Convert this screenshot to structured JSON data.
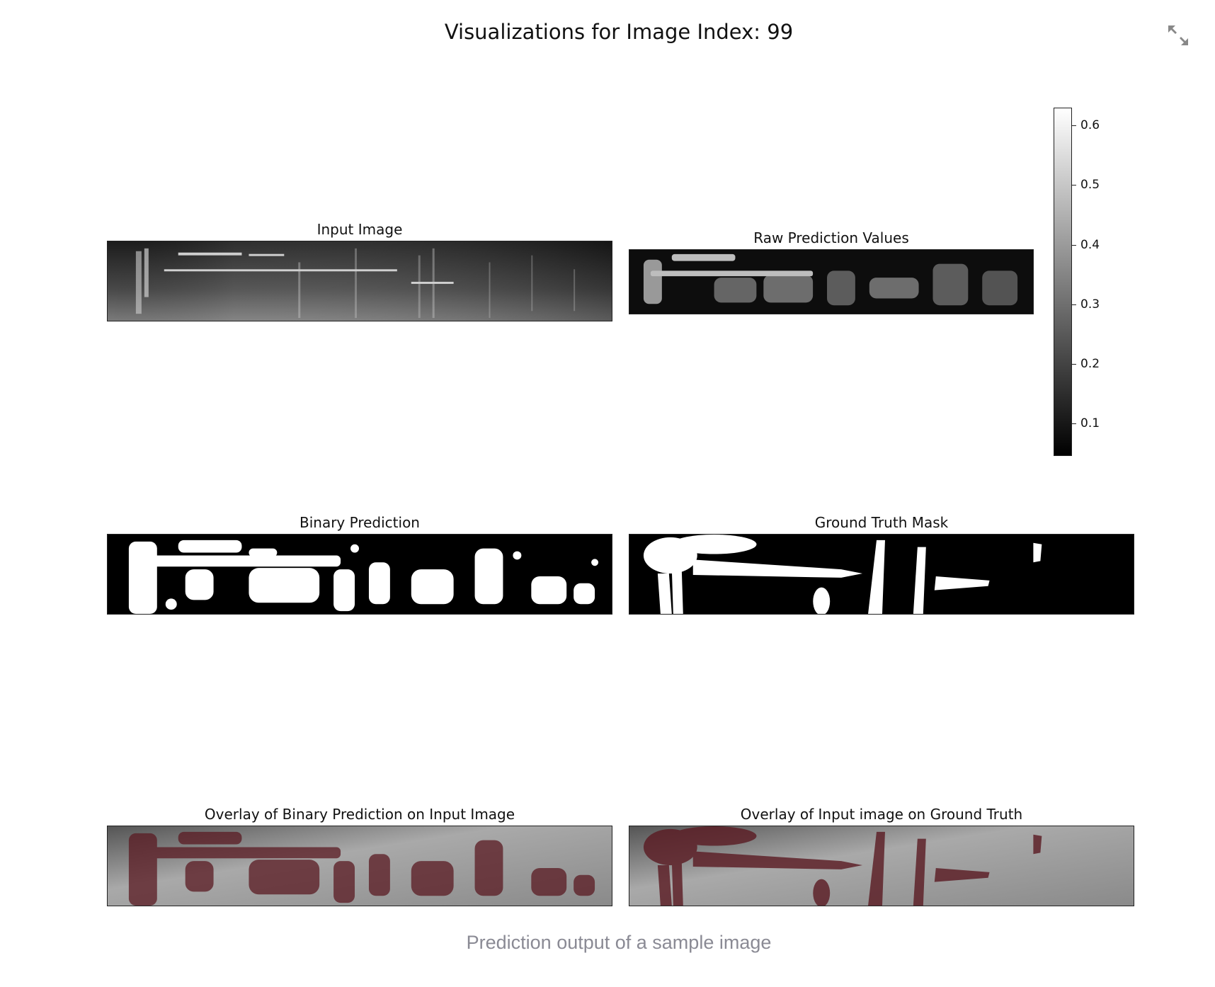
{
  "figure": {
    "title": "Visualizations for Image Index: 99",
    "caption": "Prediction output of a sample image",
    "expand_icon": "expand-arrows-icon"
  },
  "panels": {
    "input_image": {
      "title": "Input Image"
    },
    "raw_prediction": {
      "title": "Raw Prediction Values"
    },
    "binary_prediction": {
      "title": "Binary Prediction"
    },
    "ground_truth": {
      "title": "Ground Truth Mask"
    },
    "overlay_prediction": {
      "title": "Overlay of Binary Prediction on Input Image"
    },
    "overlay_ground_truth": {
      "title": "Overlay of Input image on Ground Truth"
    }
  },
  "colorbar": {
    "ticks": [
      "0.6",
      "0.5",
      "0.4",
      "0.3",
      "0.2",
      "0.1"
    ],
    "range": [
      0.04,
      0.63
    ],
    "colormap": "grayscale"
  },
  "colors": {
    "mask_fg": "#ffffff",
    "mask_bg": "#000000",
    "overlay_tint": "#5a1a22",
    "caption": "#8a8a94"
  }
}
